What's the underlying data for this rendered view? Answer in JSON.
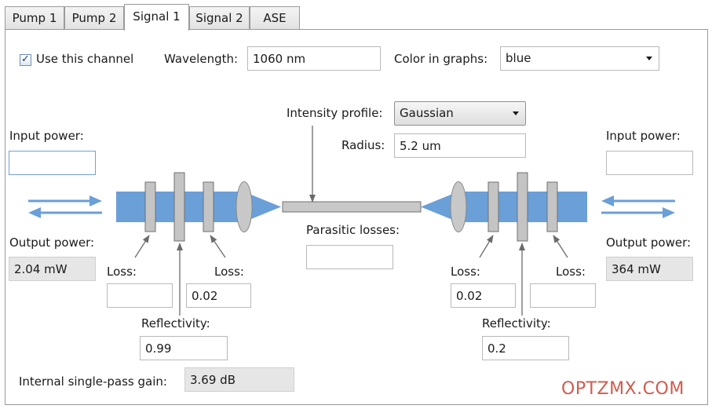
{
  "tabs": [
    {
      "label": "Pump 1"
    },
    {
      "label": "Pump 2"
    },
    {
      "label": "Signal 1",
      "active": true
    },
    {
      "label": "Signal 2"
    },
    {
      "label": "ASE"
    }
  ],
  "channel": {
    "use_channel_label": "Use this channel",
    "use_channel_checked": true,
    "check_mark": "✓",
    "wavelength_label": "Wavelength:",
    "wavelength_value": "1060 nm",
    "color_label": "Color in graphs:",
    "color_value": "blue"
  },
  "fiber": {
    "intensity_label": "Intensity profile:",
    "intensity_value": "Gaussian",
    "radius_label": "Radius:",
    "radius_value": "5.2 um",
    "parasitic_label": "Parasitic losses:",
    "parasitic_value": ""
  },
  "left": {
    "input_power_label": "Input power:",
    "input_power_value": "",
    "output_power_label": "Output power:",
    "output_power_value": "2.04 mW",
    "loss_outer_label": "Loss:",
    "loss_outer_value": "",
    "loss_inner_label": "Loss:",
    "loss_inner_value": "0.02",
    "reflectivity_label": "Reflectivity:",
    "reflectivity_value": "0.99"
  },
  "right": {
    "input_power_label": "Input power:",
    "input_power_value": "",
    "output_power_label": "Output power:",
    "output_power_value": "364 mW",
    "loss_inner_label": "Loss:",
    "loss_inner_value": "0.02",
    "loss_outer_label": "Loss:",
    "loss_outer_value": "",
    "reflectivity_label": "Reflectivity:",
    "reflectivity_value": "0.2"
  },
  "gain": {
    "label": "Internal single-pass gain:",
    "value": "3.69 dB"
  },
  "watermark": "OPTZMX.COM",
  "colors": {
    "beam": "#6a9fd8",
    "component": "#c4c4c4",
    "fiber": "#c8c8c8",
    "arrow": "#6a9fd8",
    "watermark": "#d15b4e"
  }
}
